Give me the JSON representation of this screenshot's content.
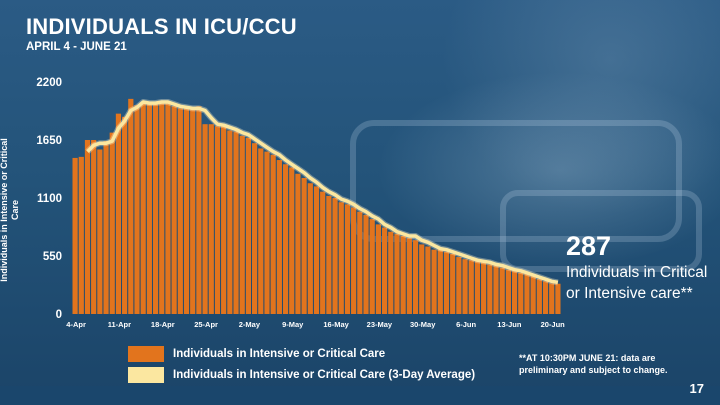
{
  "slide": {
    "title": "INDIVIDUALS IN ICU/CCU",
    "subtitle": "APRIL 4 - JUNE 21",
    "page_number": "17"
  },
  "colors": {
    "bar": "#e2741d",
    "bar_edge": "#b8580e",
    "line": "#fbe7a0",
    "line_glow": "#fff4cf",
    "axis_text": "#ffffff"
  },
  "callout": {
    "value": "287",
    "text": "Individuals in Critical or Intensive care**"
  },
  "footnote": "**AT 10:30PM JUNE 21: data are preliminary and subject to change.",
  "chart_data": {
    "type": "bar",
    "title": "INDIVIDUALS IN ICU/CCU",
    "xlabel": "",
    "ylabel": "Individuals in Intensive or Critical Care",
    "ylim": [
      0,
      2200
    ],
    "yticks": [
      0,
      550,
      1100,
      1650,
      2200
    ],
    "xtick_labels": [
      "4-Apr",
      "11-Apr",
      "18-Apr",
      "25-Apr",
      "2-May",
      "9-May",
      "16-May",
      "23-May",
      "30-May",
      "6-Jun",
      "13-Jun",
      "20-Jun"
    ],
    "xtick_indices": [
      0,
      7,
      14,
      21,
      28,
      35,
      42,
      49,
      56,
      63,
      70,
      77
    ],
    "grid": false,
    "legend_position": "bottom-left",
    "categories": [
      "4-Apr",
      "5-Apr",
      "6-Apr",
      "7-Apr",
      "8-Apr",
      "9-Apr",
      "10-Apr",
      "11-Apr",
      "12-Apr",
      "13-Apr",
      "14-Apr",
      "15-Apr",
      "16-Apr",
      "17-Apr",
      "18-Apr",
      "19-Apr",
      "20-Apr",
      "21-Apr",
      "22-Apr",
      "23-Apr",
      "24-Apr",
      "25-Apr",
      "26-Apr",
      "27-Apr",
      "28-Apr",
      "29-Apr",
      "30-Apr",
      "1-May",
      "2-May",
      "3-May",
      "4-May",
      "5-May",
      "6-May",
      "7-May",
      "8-May",
      "9-May",
      "10-May",
      "11-May",
      "12-May",
      "13-May",
      "14-May",
      "15-May",
      "16-May",
      "17-May",
      "18-May",
      "19-May",
      "20-May",
      "21-May",
      "22-May",
      "23-May",
      "24-May",
      "25-May",
      "26-May",
      "27-May",
      "28-May",
      "29-May",
      "30-May",
      "31-May",
      "1-Jun",
      "2-Jun",
      "3-Jun",
      "4-Jun",
      "5-Jun",
      "6-Jun",
      "7-Jun",
      "8-Jun",
      "9-Jun",
      "10-Jun",
      "11-Jun",
      "12-Jun",
      "13-Jun",
      "14-Jun",
      "15-Jun",
      "16-Jun",
      "17-Jun",
      "18-Jun",
      "19-Jun",
      "20-Jun",
      "21-Jun"
    ],
    "series": [
      {
        "name": "Individuals in Intensive or Critical Care",
        "type": "bar",
        "values": [
          1480,
          1490,
          1650,
          1650,
          1560,
          1640,
          1720,
          1900,
          1870,
          2040,
          1980,
          2000,
          2010,
          1990,
          2020,
          2000,
          1970,
          1950,
          1950,
          1960,
          1970,
          1800,
          1800,
          1780,
          1780,
          1740,
          1730,
          1690,
          1670,
          1620,
          1570,
          1540,
          1510,
          1460,
          1420,
          1390,
          1330,
          1290,
          1240,
          1210,
          1160,
          1120,
          1100,
          1060,
          1040,
          1010,
          970,
          940,
          900,
          850,
          820,
          780,
          760,
          740,
          720,
          700,
          660,
          640,
          610,
          620,
          590,
          570,
          540,
          520,
          510,
          500,
          490,
          470,
          460,
          440,
          420,
          410,
          390,
          380,
          360,
          330,
          310,
          290,
          287
        ]
      },
      {
        "name": "Individuals in Intensive or Critical Care (3-Day Average)",
        "type": "line",
        "values": [
          null,
          null,
          1540,
          1600,
          1620,
          1620,
          1640,
          1760,
          1830,
          1930,
          1960,
          2010,
          2000,
          2000,
          2010,
          2010,
          1990,
          1970,
          1960,
          1950,
          1950,
          1930,
          1860,
          1800,
          1790,
          1770,
          1750,
          1720,
          1700,
          1660,
          1620,
          1580,
          1540,
          1510,
          1460,
          1420,
          1380,
          1340,
          1290,
          1250,
          1200,
          1160,
          1130,
          1090,
          1070,
          1040,
          1000,
          970,
          930,
          900,
          850,
          820,
          780,
          760,
          740,
          740,
          700,
          680,
          650,
          620,
          610,
          590,
          570,
          550,
          530,
          510,
          500,
          490,
          470,
          460,
          440,
          420,
          410,
          390,
          370,
          350,
          330,
          310,
          300
        ]
      }
    ]
  }
}
